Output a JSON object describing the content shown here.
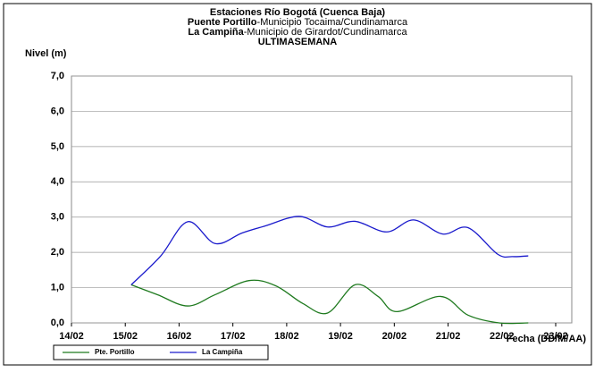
{
  "chart_data": {
    "type": "line",
    "title_lines": [
      [
        "Estaciones Río Bogotá (Cuenca Baja)"
      ],
      [
        "Puente Portillo",
        "-Municipio Tocaima/Cundinamarca"
      ],
      [
        "La Campiña",
        "-Municipio de Girardot/Cundinamarca"
      ],
      [
        "ULTIMASEMANA"
      ]
    ],
    "ylabel": "Nivel (m)",
    "xlabel": "Fecha (DD/M/AA)",
    "xlim": [
      0,
      9
    ],
    "xticks": [
      {
        "value": 0,
        "label": "14/02"
      },
      {
        "value": 1,
        "label": "15/02"
      },
      {
        "value": 2,
        "label": "16/02"
      },
      {
        "value": 3,
        "label": "17/02"
      },
      {
        "value": 4,
        "label": "18/02"
      },
      {
        "value": 5,
        "label": "19/02"
      },
      {
        "value": 6,
        "label": "20/02"
      },
      {
        "value": 7,
        "label": "21/02"
      },
      {
        "value": 8,
        "label": "22/02"
      },
      {
        "value": 9,
        "label": "23/02"
      }
    ],
    "ylim": [
      0,
      7
    ],
    "yticks": [
      {
        "value": 0,
        "label": "0,0"
      },
      {
        "value": 1,
        "label": "1,0"
      },
      {
        "value": 2,
        "label": "2,0"
      },
      {
        "value": 3,
        "label": "3,0"
      },
      {
        "value": 4,
        "label": "4,0"
      },
      {
        "value": 5,
        "label": "5,0"
      },
      {
        "value": 6,
        "label": "6,0"
      },
      {
        "value": 7,
        "label": "7,0"
      }
    ],
    "grid": true,
    "series": [
      {
        "name": "Pte. Portillo",
        "color": "#1f7a1f",
        "x": [
          1.11,
          1.6,
          2.16,
          2.67,
          3.3,
          3.8,
          4.3,
          4.76,
          5.27,
          5.7,
          6.05,
          6.86,
          7.37,
          7.95,
          8.49
        ],
        "values": [
          1.08,
          0.8,
          0.48,
          0.8,
          1.2,
          1.05,
          0.55,
          0.28,
          1.08,
          0.75,
          0.32,
          0.75,
          0.22,
          0.0,
          0.0
        ]
      },
      {
        "name": "La Campiña",
        "color": "#1a1acc",
        "x": [
          1.11,
          1.66,
          2.16,
          2.67,
          3.17,
          3.6,
          4.23,
          4.76,
          5.27,
          5.86,
          6.36,
          6.9,
          7.37,
          7.92,
          8.2,
          8.49
        ],
        "values": [
          1.08,
          1.9,
          2.87,
          2.25,
          2.55,
          2.75,
          3.02,
          2.72,
          2.88,
          2.58,
          2.92,
          2.52,
          2.7,
          1.95,
          1.88,
          1.9
        ]
      }
    ]
  }
}
